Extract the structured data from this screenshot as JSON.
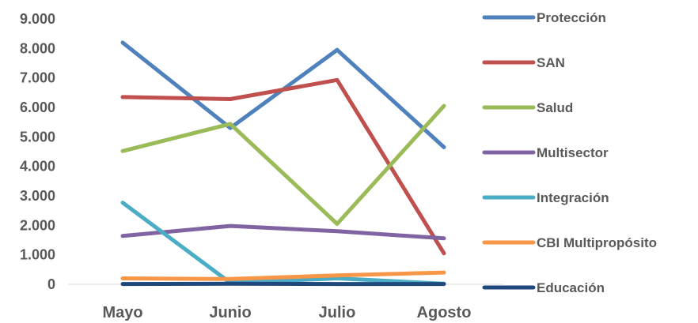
{
  "chart_data": {
    "type": "line",
    "title": "",
    "xlabel": "",
    "ylabel": "",
    "categories": [
      "Mayo",
      "Junio",
      "Julio",
      "Agosto"
    ],
    "y_ticks": [
      "0",
      "1.000",
      "2.000",
      "3.000",
      "4.000",
      "5.000",
      "6.000",
      "7.000",
      "8.000",
      "9.000"
    ],
    "ylim": [
      0,
      9000
    ],
    "grid": false,
    "legend_position": "right",
    "series": [
      {
        "name": "Protección",
        "color": "#4F81BD",
        "values": [
          8200,
          5300,
          7950,
          4650
        ]
      },
      {
        "name": "SAN",
        "color": "#C0504D",
        "values": [
          6350,
          6280,
          6930,
          1050
        ]
      },
      {
        "name": "Salud",
        "color": "#9BBB59",
        "values": [
          4520,
          5440,
          2050,
          6050
        ]
      },
      {
        "name": "Multisector",
        "color": "#8064A2",
        "values": [
          1640,
          1980,
          1800,
          1560
        ]
      },
      {
        "name": "Integración",
        "color": "#4BACC6",
        "values": [
          2770,
          50,
          200,
          20
        ]
      },
      {
        "name": "CBI Multipropósito",
        "color": "#F79646",
        "values": [
          200,
          180,
          300,
          400
        ]
      },
      {
        "name": "Educación",
        "color": "#1F497D",
        "values": [
          10,
          20,
          10,
          10
        ]
      }
    ]
  }
}
